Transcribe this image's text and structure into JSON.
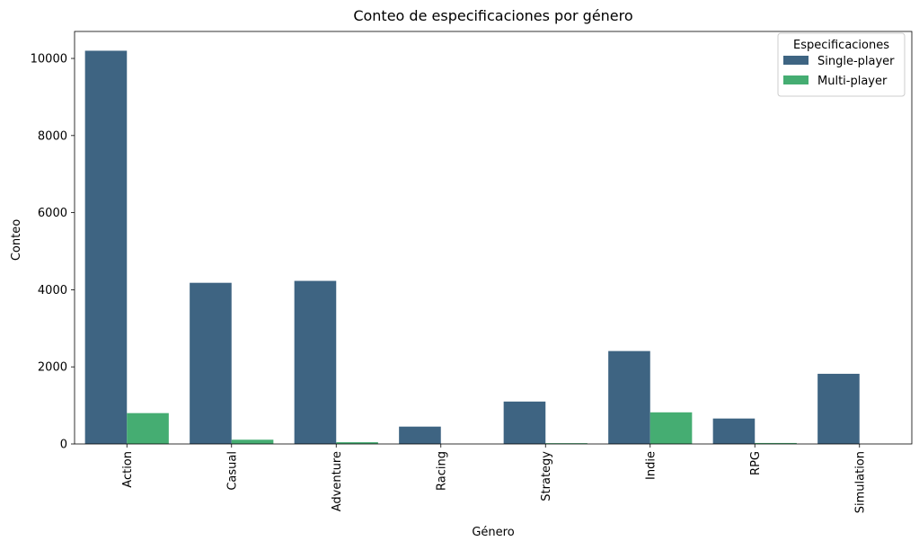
{
  "chart_data": {
    "type": "bar",
    "title": "Conteo de especificaciones por género",
    "xlabel": "Género",
    "ylabel": "Conteo",
    "categories": [
      "Action",
      "Casual",
      "Adventure",
      "Racing",
      "Strategy",
      "Indie",
      "RPG",
      "Simulation"
    ],
    "series": [
      {
        "name": "Single-player",
        "color": "#3e6482",
        "values": [
          10200,
          4180,
          4230,
          450,
          1100,
          2410,
          660,
          1820
        ]
      },
      {
        "name": "Multi-player",
        "color": "#45ad72",
        "values": [
          800,
          110,
          45,
          0,
          20,
          820,
          25,
          0
        ]
      }
    ],
    "ylim": [
      0,
      10700
    ],
    "yticks": [
      0,
      2000,
      4000,
      6000,
      8000,
      10000
    ],
    "grid": false,
    "legend": {
      "title": "Especificaciones",
      "position": "top-right"
    }
  }
}
